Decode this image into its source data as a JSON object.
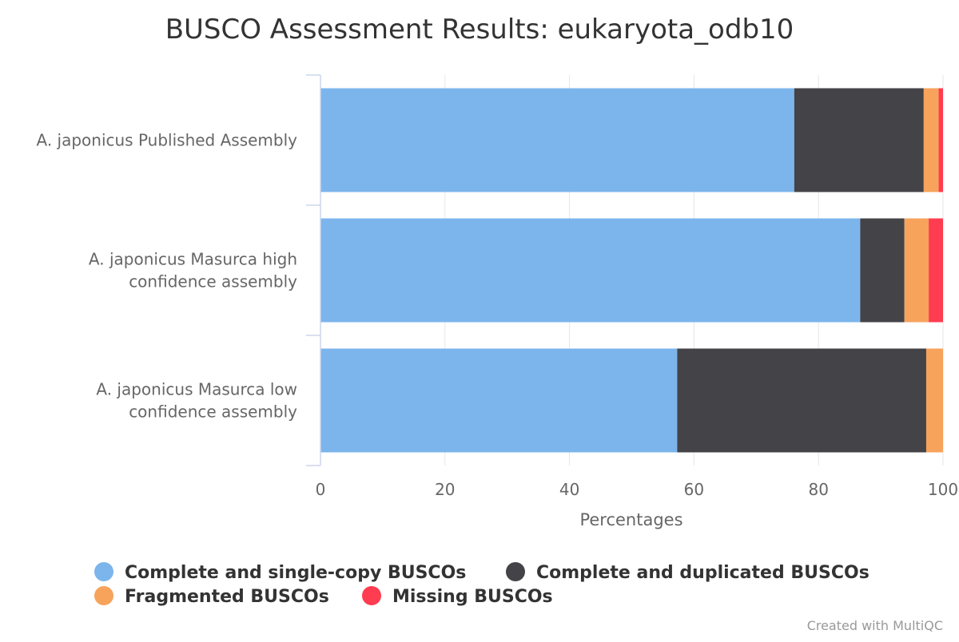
{
  "chart_data": {
    "type": "bar",
    "orientation": "horizontal",
    "stacked": true,
    "title": "BUSCO Assessment Results: eukaryota_odb10",
    "categories": [
      [
        "A. japonicus Published Assembly"
      ],
      [
        "A. japonicus Masurca high",
        "confidence assembly"
      ],
      [
        "A. japonicus Masurca low",
        "confidence assembly"
      ]
    ],
    "series": [
      {
        "name": "Complete and single-copy BUSCOs",
        "color": "#7cb5ec",
        "values": [
          76.1,
          86.7,
          57.3
        ]
      },
      {
        "name": "Complete and duplicated BUSCOs",
        "color": "#434348",
        "values": [
          20.8,
          7.1,
          40.0
        ]
      },
      {
        "name": "Fragmented BUSCOs",
        "color": "#f7a35c",
        "values": [
          2.4,
          3.9,
          2.7
        ]
      },
      {
        "name": "Missing BUSCOs",
        "color": "#ff3c50",
        "values": [
          0.7,
          2.3,
          0.0
        ]
      }
    ],
    "xlabel": "Percentages",
    "xlim": [
      0,
      100
    ],
    "xticks": [
      "0",
      "20",
      "40",
      "60",
      "80",
      "100"
    ],
    "grid": true,
    "legend": "bottom-center"
  },
  "credit": "Created with MultiQC"
}
